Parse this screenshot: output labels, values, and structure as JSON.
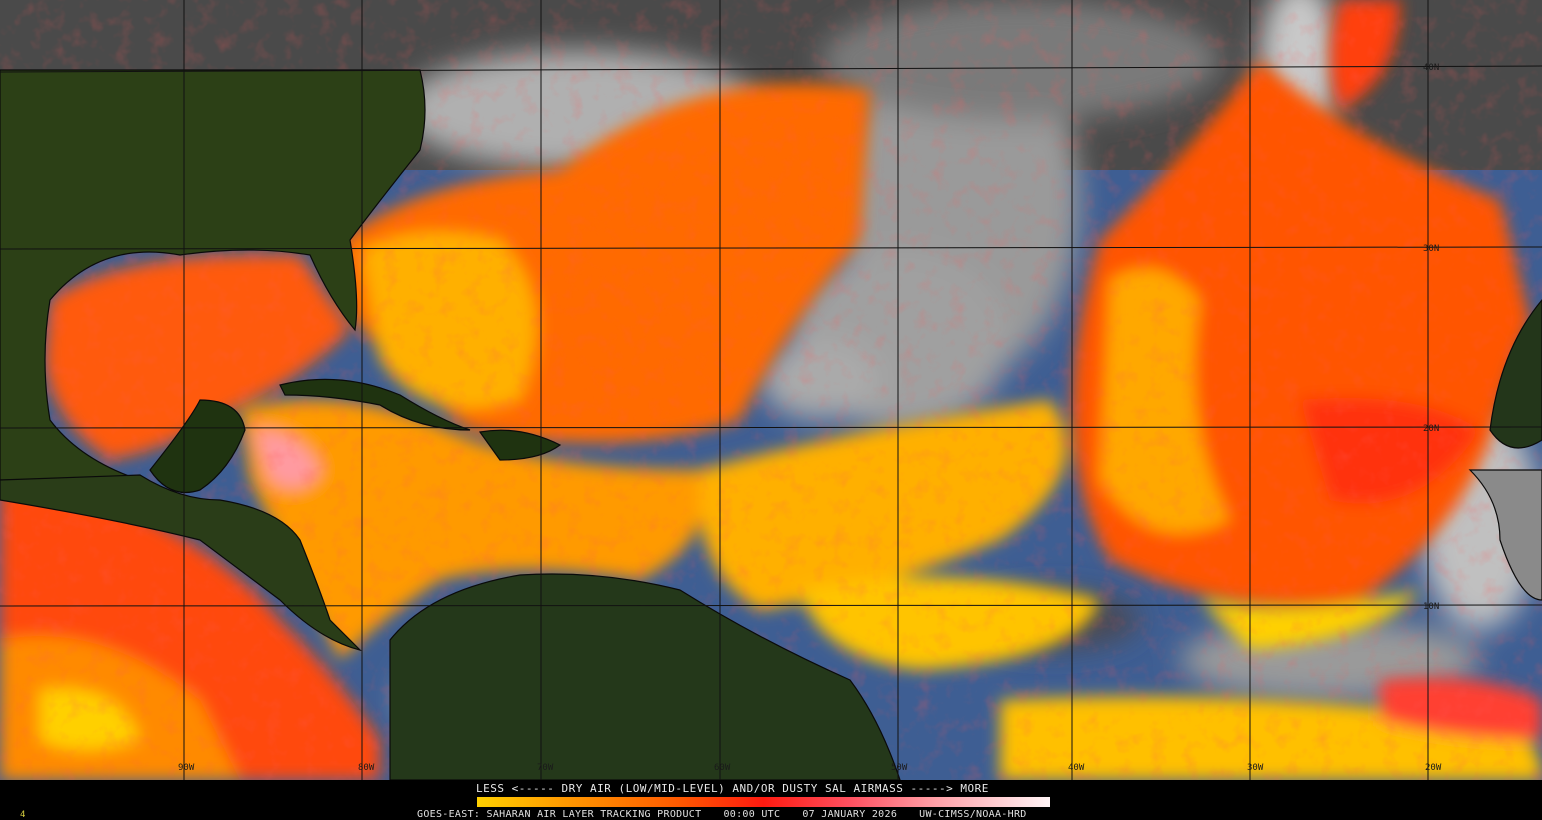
{
  "product": {
    "satellite_line": "GOES-EAST: SAHARAN AIR LAYER TRACKING PRODUCT",
    "time": "00:00 UTC",
    "date": "07 JANUARY 2026",
    "credit": "UW-CIMSS/NOAA-HRD",
    "corner_mark": "4"
  },
  "legend": {
    "title": "LESS <----- DRY AIR (LOW/MID-LEVEL) AND/OR DUSTY SAL AIRMASS -----> MORE",
    "colors": [
      "#ffd000",
      "#ff9a00",
      "#ff5a00",
      "#ff1a10",
      "#ff5060",
      "#ffa0a8",
      "#fff4f6"
    ]
  },
  "grid": {
    "longitude_labels": [
      "90W",
      "80W",
      "70W",
      "60W",
      "50W",
      "40W",
      "30W",
      "20W"
    ],
    "latitude_labels": [
      "40N",
      "30N",
      "20N",
      "10N"
    ]
  },
  "colors": {
    "land": "#1f3310",
    "clouds": "#b8b8b8",
    "moist_ocean": "#3a5a90",
    "sal_dust": "#ff6a00"
  }
}
